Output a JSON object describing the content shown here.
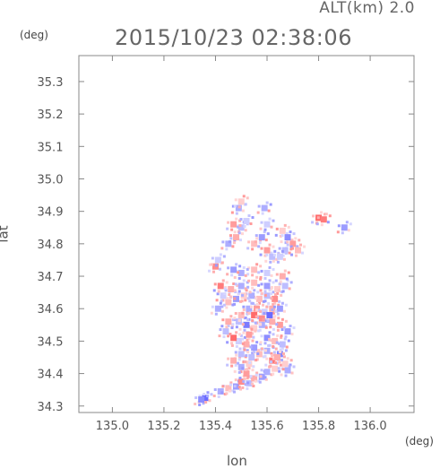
{
  "header": {
    "altitude_label": "ALT(km) 2.0",
    "timestamp": "2015/10/23 02:38:06"
  },
  "axes": {
    "y_unit": "(deg)",
    "x_unit": "(deg)",
    "xlabel": "lon",
    "ylabel": "lat"
  },
  "chart_data": {
    "type": "heatmap",
    "title": "2015/10/23 02:38:06",
    "subtitle": "ALT(km) 2.0",
    "xlabel": "lon",
    "ylabel": "lat",
    "xlim": [
      134.87,
      136.17
    ],
    "ylim": [
      34.28,
      35.38
    ],
    "x_ticks": [
      135.0,
      135.2,
      135.4,
      135.6,
      135.8,
      136.0
    ],
    "y_ticks": [
      34.3,
      34.4,
      34.5,
      34.6,
      34.7,
      34.8,
      34.9,
      35.0,
      35.1,
      35.2,
      35.3
    ],
    "x_tick_labels": [
      "135.0",
      "135.2",
      "135.4",
      "135.6",
      "135.8",
      "136.0"
    ],
    "y_tick_labels": [
      "34.3",
      "34.4",
      "34.5",
      "34.6",
      "34.7",
      "34.8",
      "34.9",
      "35.0",
      "35.1",
      "35.2",
      "35.3"
    ],
    "grid": false,
    "colors": {
      "positive": "#ff5a5a",
      "negative": "#5a5aff",
      "frame": "#888888"
    },
    "points": [
      {
        "lon": 135.36,
        "lat": 34.325,
        "v": -0.9
      },
      {
        "lon": 135.345,
        "lat": 34.32,
        "v": -0.7
      },
      {
        "lon": 135.42,
        "lat": 34.345,
        "v": -0.5
      },
      {
        "lon": 135.45,
        "lat": 34.355,
        "v": 0.4
      },
      {
        "lon": 135.48,
        "lat": 34.36,
        "v": -0.6
      },
      {
        "lon": 135.5,
        "lat": 34.375,
        "v": 0.7
      },
      {
        "lon": 135.53,
        "lat": 34.37,
        "v": -0.4
      },
      {
        "lon": 135.55,
        "lat": 34.385,
        "v": 0.5
      },
      {
        "lon": 135.58,
        "lat": 34.39,
        "v": -0.6
      },
      {
        "lon": 135.6,
        "lat": 34.405,
        "v": -0.5
      },
      {
        "lon": 135.63,
        "lat": 34.415,
        "v": 0.3
      },
      {
        "lon": 135.52,
        "lat": 34.4,
        "v": 0.6
      },
      {
        "lon": 135.5,
        "lat": 34.42,
        "v": -0.5
      },
      {
        "lon": 135.47,
        "lat": 34.44,
        "v": 0.5
      },
      {
        "lon": 135.5,
        "lat": 34.46,
        "v": -0.4
      },
      {
        "lon": 135.53,
        "lat": 34.43,
        "v": 0.3
      },
      {
        "lon": 135.62,
        "lat": 34.44,
        "v": 0.8
      },
      {
        "lon": 135.65,
        "lat": 34.46,
        "v": -0.7
      },
      {
        "lon": 135.6,
        "lat": 34.47,
        "v": -0.5
      },
      {
        "lon": 135.57,
        "lat": 34.46,
        "v": 0.4
      },
      {
        "lon": 135.55,
        "lat": 34.48,
        "v": -0.6
      },
      {
        "lon": 135.52,
        "lat": 34.49,
        "v": 0.5
      },
      {
        "lon": 135.49,
        "lat": 34.5,
        "v": -0.3
      },
      {
        "lon": 135.47,
        "lat": 34.51,
        "v": 0.9
      },
      {
        "lon": 135.6,
        "lat": 34.51,
        "v": -0.7
      },
      {
        "lon": 135.63,
        "lat": 34.5,
        "v": 0.4
      },
      {
        "lon": 135.66,
        "lat": 34.49,
        "v": -0.4
      },
      {
        "lon": 135.68,
        "lat": 34.53,
        "v": -0.6
      },
      {
        "lon": 135.65,
        "lat": 34.55,
        "v": 0.6
      },
      {
        "lon": 135.62,
        "lat": 34.56,
        "v": 0.5
      },
      {
        "lon": 135.58,
        "lat": 34.55,
        "v": -0.5
      },
      {
        "lon": 135.55,
        "lat": 34.54,
        "v": 0.3
      },
      {
        "lon": 135.52,
        "lat": 34.55,
        "v": -0.8
      },
      {
        "lon": 135.49,
        "lat": 34.56,
        "v": -0.4
      },
      {
        "lon": 135.5,
        "lat": 34.58,
        "v": 0.4
      },
      {
        "lon": 135.53,
        "lat": 34.6,
        "v": -0.5
      },
      {
        "lon": 135.56,
        "lat": 34.6,
        "v": 0.6
      },
      {
        "lon": 135.59,
        "lat": 34.59,
        "v": -0.3
      },
      {
        "lon": 135.62,
        "lat": 34.6,
        "v": 0.5
      },
      {
        "lon": 135.65,
        "lat": 34.6,
        "v": -0.6
      },
      {
        "lon": 135.63,
        "lat": 34.63,
        "v": 0.7
      },
      {
        "lon": 135.6,
        "lat": 34.64,
        "v": -0.4
      },
      {
        "lon": 135.57,
        "lat": 34.63,
        "v": 0.4
      },
      {
        "lon": 135.54,
        "lat": 34.64,
        "v": -0.5
      },
      {
        "lon": 135.51,
        "lat": 34.64,
        "v": 0.3
      },
      {
        "lon": 135.48,
        "lat": 34.63,
        "v": -0.6
      },
      {
        "lon": 135.45,
        "lat": 34.62,
        "v": 0.4
      },
      {
        "lon": 135.43,
        "lat": 34.64,
        "v": -0.3
      },
      {
        "lon": 135.46,
        "lat": 34.66,
        "v": 0.5
      },
      {
        "lon": 135.5,
        "lat": 34.67,
        "v": -0.5
      },
      {
        "lon": 135.55,
        "lat": 34.68,
        "v": 0.4
      },
      {
        "lon": 135.6,
        "lat": 34.67,
        "v": -0.6
      },
      {
        "lon": 135.64,
        "lat": 34.66,
        "v": 0.3
      },
      {
        "lon": 135.67,
        "lat": 34.67,
        "v": -0.4
      },
      {
        "lon": 135.66,
        "lat": 34.7,
        "v": 0.5
      },
      {
        "lon": 135.6,
        "lat": 34.71,
        "v": -0.3
      },
      {
        "lon": 135.55,
        "lat": 34.72,
        "v": 0.4
      },
      {
        "lon": 135.5,
        "lat": 34.71,
        "v": -0.5
      },
      {
        "lon": 135.47,
        "lat": 34.72,
        "v": -0.6
      },
      {
        "lon": 135.42,
        "lat": 34.67,
        "v": 0.8
      },
      {
        "lon": 135.4,
        "lat": 34.73,
        "v": 0.7
      },
      {
        "lon": 135.41,
        "lat": 34.75,
        "v": -0.3
      },
      {
        "lon": 135.45,
        "lat": 34.8,
        "v": -0.5
      },
      {
        "lon": 135.48,
        "lat": 34.82,
        "v": 0.5
      },
      {
        "lon": 135.5,
        "lat": 34.85,
        "v": -0.4
      },
      {
        "lon": 135.47,
        "lat": 34.86,
        "v": 0.6
      },
      {
        "lon": 135.52,
        "lat": 34.87,
        "v": -0.3
      },
      {
        "lon": 135.49,
        "lat": 34.91,
        "v": -0.5
      },
      {
        "lon": 135.5,
        "lat": 34.93,
        "v": 0.3
      },
      {
        "lon": 135.55,
        "lat": 34.8,
        "v": 0.4
      },
      {
        "lon": 135.58,
        "lat": 34.82,
        "v": -0.6
      },
      {
        "lon": 135.6,
        "lat": 34.78,
        "v": 0.6
      },
      {
        "lon": 135.62,
        "lat": 34.76,
        "v": -0.4
      },
      {
        "lon": 135.6,
        "lat": 34.86,
        "v": -0.3
      },
      {
        "lon": 135.59,
        "lat": 34.91,
        "v": -0.5
      },
      {
        "lon": 135.66,
        "lat": 34.84,
        "v": 0.3
      },
      {
        "lon": 135.68,
        "lat": 34.82,
        "v": -0.7
      },
      {
        "lon": 135.7,
        "lat": 34.8,
        "v": 0.6
      },
      {
        "lon": 135.67,
        "lat": 34.78,
        "v": -0.4
      },
      {
        "lon": 135.72,
        "lat": 34.78,
        "v": 0.4
      },
      {
        "lon": 135.65,
        "lat": 34.76,
        "v": -0.3
      },
      {
        "lon": 135.8,
        "lat": 34.88,
        "v": 0.9
      },
      {
        "lon": 135.82,
        "lat": 34.875,
        "v": 0.8
      },
      {
        "lon": 135.9,
        "lat": 34.85,
        "v": -0.6
      },
      {
        "lon": 135.68,
        "lat": 34.41,
        "v": -0.5
      },
      {
        "lon": 135.67,
        "lat": 34.43,
        "v": 0.3
      },
      {
        "lon": 135.44,
        "lat": 34.53,
        "v": -0.4
      },
      {
        "lon": 135.45,
        "lat": 34.56,
        "v": 0.5
      },
      {
        "lon": 135.41,
        "lat": 34.6,
        "v": -0.5
      },
      {
        "lon": 135.55,
        "lat": 34.58,
        "v": 0.9
      },
      {
        "lon": 135.58,
        "lat": 34.57,
        "v": 0.7
      },
      {
        "lon": 135.61,
        "lat": 34.58,
        "v": -0.9
      },
      {
        "lon": 135.53,
        "lat": 34.52,
        "v": 0.6
      },
      {
        "lon": 135.64,
        "lat": 34.45,
        "v": 0.5
      },
      {
        "lon": 135.54,
        "lat": 34.45,
        "v": -0.4
      }
    ]
  }
}
